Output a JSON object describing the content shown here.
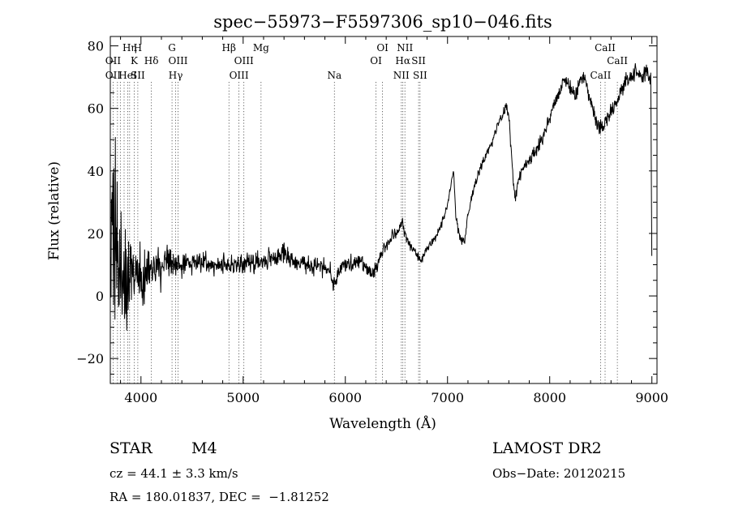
{
  "chart_data": {
    "type": "line",
    "title": "spec−55973−F5597306_sp10−046.fits",
    "xlabel": "Wavelength (Å)",
    "ylabel": "Flux (relative)",
    "xlim": [
      3700,
      9050
    ],
    "ylim": [
      -28,
      83
    ],
    "xticks": [
      {
        "value": 4000,
        "label": "4000"
      },
      {
        "value": 5000,
        "label": "5000"
      },
      {
        "value": 6000,
        "label": "6000"
      },
      {
        "value": 7000,
        "label": "7000"
      },
      {
        "value": 8000,
        "label": "8000"
      },
      {
        "value": 9000,
        "label": "9000"
      }
    ],
    "yticks": [
      {
        "value": -20,
        "label": "−20"
      },
      {
        "value": 0,
        "label": "0"
      },
      {
        "value": 20,
        "label": "20"
      },
      {
        "value": 40,
        "label": "40"
      },
      {
        "value": 60,
        "label": "60"
      },
      {
        "value": 80,
        "label": "80"
      }
    ],
    "grid": false,
    "series": [
      {
        "color": "#000000",
        "envelope": [
          [
            3700,
            10
          ],
          [
            3715,
            30
          ],
          [
            3730,
            5
          ],
          [
            3750,
            12
          ],
          [
            3800,
            9
          ],
          [
            3900,
            7
          ],
          [
            4000,
            6
          ],
          [
            4100,
            9
          ],
          [
            4200,
            9
          ],
          [
            4300,
            10
          ],
          [
            4400,
            10
          ],
          [
            4500,
            11
          ],
          [
            4600,
            11
          ],
          [
            4700,
            10
          ],
          [
            4800,
            10
          ],
          [
            4900,
            10
          ],
          [
            5000,
            10
          ],
          [
            5100,
            11
          ],
          [
            5200,
            11
          ],
          [
            5300,
            12
          ],
          [
            5400,
            14
          ],
          [
            5500,
            11
          ],
          [
            5600,
            10
          ],
          [
            5700,
            10
          ],
          [
            5800,
            9
          ],
          [
            5850,
            8
          ],
          [
            5880,
            4
          ],
          [
            5900,
            5
          ],
          [
            5950,
            9
          ],
          [
            6000,
            10
          ],
          [
            6050,
            10
          ],
          [
            6100,
            11
          ],
          [
            6150,
            11
          ],
          [
            6200,
            9
          ],
          [
            6250,
            7
          ],
          [
            6300,
            8
          ],
          [
            6340,
            13
          ],
          [
            6400,
            16
          ],
          [
            6450,
            19
          ],
          [
            6500,
            20
          ],
          [
            6540,
            22
          ],
          [
            6560,
            24
          ],
          [
            6580,
            20
          ],
          [
            6620,
            17
          ],
          [
            6660,
            15
          ],
          [
            6700,
            13
          ],
          [
            6730,
            11
          ],
          [
            6760,
            13
          ],
          [
            6800,
            15
          ],
          [
            6850,
            17
          ],
          [
            6900,
            20
          ],
          [
            6950,
            24
          ],
          [
            7000,
            29
          ],
          [
            7030,
            35
          ],
          [
            7060,
            40
          ],
          [
            7080,
            26
          ],
          [
            7110,
            20
          ],
          [
            7140,
            17
          ],
          [
            7170,
            18
          ],
          [
            7200,
            26
          ],
          [
            7240,
            32
          ],
          [
            7280,
            37
          ],
          [
            7320,
            40
          ],
          [
            7360,
            44
          ],
          [
            7400,
            47
          ],
          [
            7450,
            51
          ],
          [
            7500,
            55
          ],
          [
            7550,
            59
          ],
          [
            7580,
            60
          ],
          [
            7600,
            58
          ],
          [
            7620,
            48
          ],
          [
            7640,
            38
          ],
          [
            7660,
            31
          ],
          [
            7680,
            35
          ],
          [
            7720,
            40
          ],
          [
            7780,
            43
          ],
          [
            7850,
            46
          ],
          [
            7900,
            48
          ],
          [
            7950,
            52
          ],
          [
            8000,
            57
          ],
          [
            8050,
            62
          ],
          [
            8100,
            66
          ],
          [
            8150,
            70
          ],
          [
            8200,
            67
          ],
          [
            8250,
            64
          ],
          [
            8300,
            70
          ],
          [
            8350,
            69
          ],
          [
            8400,
            62
          ],
          [
            8450,
            57
          ],
          [
            8490,
            54
          ],
          [
            8520,
            54
          ],
          [
            8560,
            57
          ],
          [
            8600,
            59
          ],
          [
            8650,
            62
          ],
          [
            8700,
            66
          ],
          [
            8750,
            69
          ],
          [
            8800,
            70
          ],
          [
            8850,
            72
          ],
          [
            8900,
            70
          ],
          [
            8950,
            71
          ],
          [
            8990,
            69
          ],
          [
            9000,
            8
          ]
        ],
        "noise": [
          [
            3700,
            30
          ],
          [
            3800,
            15
          ],
          [
            3900,
            9
          ],
          [
            4000,
            7
          ],
          [
            4200,
            4
          ],
          [
            4400,
            2.4
          ],
          [
            5000,
            2.2
          ],
          [
            6000,
            2.2
          ],
          [
            6500,
            1.3
          ],
          [
            7000,
            0.9
          ],
          [
            8000,
            1.6
          ],
          [
            9000,
            2.2
          ]
        ]
      }
    ],
    "lines": [
      {
        "wl": 3727,
        "labels": [
          {
            "text": "OII",
            "row": 2
          },
          {
            "text": "OII",
            "row": 3
          }
        ]
      },
      {
        "wl": 3770,
        "labels": []
      },
      {
        "wl": 3798,
        "labels": []
      },
      {
        "wl": 3835,
        "labels": []
      },
      {
        "wl": 3870,
        "labels": [
          {
            "text": "HeI",
            "row": 3
          }
        ]
      },
      {
        "wl": 3889,
        "labels": [
          {
            "text": "Hη",
            "row": 1
          }
        ]
      },
      {
        "wl": 3934,
        "labels": [
          {
            "text": "K",
            "row": 2
          }
        ]
      },
      {
        "wl": 3969,
        "labels": [
          {
            "text": "H",
            "row": 1
          },
          {
            "text": "SII",
            "row": 3
          }
        ]
      },
      {
        "wl": 4102,
        "labels": [
          {
            "text": "Hδ",
            "row": 2
          }
        ]
      },
      {
        "wl": 4304,
        "labels": [
          {
            "text": "G",
            "row": 1
          }
        ]
      },
      {
        "wl": 4340,
        "labels": [
          {
            "text": "Hγ",
            "row": 3
          }
        ]
      },
      {
        "wl": 4363,
        "labels": [
          {
            "text": "OIII",
            "row": 2
          }
        ]
      },
      {
        "wl": 4861,
        "labels": [
          {
            "text": "Hβ",
            "row": 1
          }
        ]
      },
      {
        "wl": 4959,
        "labels": [
          {
            "text": "OIII",
            "row": 3
          }
        ]
      },
      {
        "wl": 5007,
        "labels": [
          {
            "text": "OIII",
            "row": 2
          }
        ]
      },
      {
        "wl": 5175,
        "labels": [
          {
            "text": "Mg",
            "row": 1
          }
        ]
      },
      {
        "wl": 5893,
        "labels": [
          {
            "text": "Na",
            "row": 3
          }
        ]
      },
      {
        "wl": 6300,
        "labels": [
          {
            "text": "OI",
            "row": 2
          }
        ]
      },
      {
        "wl": 6364,
        "labels": [
          {
            "text": "OI",
            "row": 1
          }
        ]
      },
      {
        "wl": 6548,
        "labels": [
          {
            "text": "NII",
            "row": 3
          }
        ]
      },
      {
        "wl": 6563,
        "labels": [
          {
            "text": "Hα",
            "row": 2
          }
        ]
      },
      {
        "wl": 6583,
        "labels": [
          {
            "text": "NII",
            "row": 1
          }
        ]
      },
      {
        "wl": 6717,
        "labels": [
          {
            "text": "SII",
            "row": 2
          }
        ]
      },
      {
        "wl": 6731,
        "labels": [
          {
            "text": "SII",
            "row": 3
          }
        ]
      },
      {
        "wl": 8498,
        "labels": [
          {
            "text": "CaII",
            "row": 3
          }
        ]
      },
      {
        "wl": 8542,
        "labels": [
          {
            "text": "CaII",
            "row": 1
          }
        ]
      },
      {
        "wl": 8662,
        "labels": [
          {
            "text": "CaII",
            "row": 2
          }
        ]
      }
    ]
  },
  "info": {
    "class_label": "STAR",
    "subclass": "M4",
    "survey": "LAMOST DR2",
    "cz": "cz = 44.1 ± 3.3 km/s",
    "obs_date": "Obs−Date: 20120215",
    "coords": "RA = 180.01837, DEC =  −1.81252"
  }
}
